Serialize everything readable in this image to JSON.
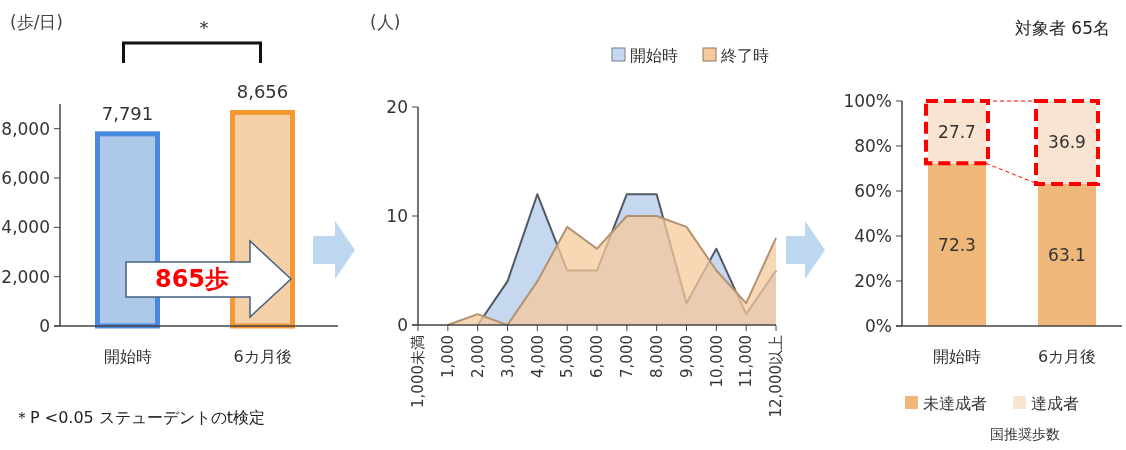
{
  "chart_data": [
    {
      "type": "bar",
      "ylabel": "(歩/日)",
      "categories": [
        "開始時",
        "6カ月後"
      ],
      "values": [
        7791,
        8656
      ],
      "colors": [
        "#aec8ea",
        "#f5cfa6"
      ],
      "ylim": [
        0,
        9000
      ],
      "yticks": [
        {
          "value": 0,
          "label": "0"
        },
        {
          "value": 2000,
          "label": "2,000"
        },
        {
          "value": 4000,
          "label": "4,000"
        },
        {
          "value": 6000,
          "label": "6,000"
        },
        {
          "value": 8000,
          "label": "8,000"
        }
      ],
      "value_labels": [
        "7,791",
        "8,656"
      ],
      "grid": false,
      "annotations": [
        "*",
        "865歩",
        "＊P <0.05 ステューデントのt検定"
      ]
    },
    {
      "type": "area",
      "ylabel": "(人)",
      "categories": [
        "1,000未満",
        "1,000",
        "2,000",
        "3,000",
        "4,000",
        "5,000",
        "6,000",
        "7,000",
        "8,000",
        "9,000",
        "10,000",
        "11,000",
        "12,000以上"
      ],
      "series": [
        {
          "name": "開始時",
          "color": "#c5d8f0",
          "values": [
            null,
            null,
            0,
            4,
            12,
            5,
            5,
            12,
            12,
            2,
            7,
            1,
            5
          ]
        },
        {
          "name": "終了時",
          "color": "#f5c99c",
          "values": [
            null,
            0,
            1,
            0,
            4,
            9,
            7,
            10,
            10,
            9,
            5,
            2,
            8
          ]
        }
      ],
      "ylim": [
        0,
        20
      ],
      "yticks": [
        0,
        10,
        20
      ],
      "legend": "top right",
      "grid": false
    },
    {
      "type": "bar",
      "stacked": true,
      "categories": [
        "開始時",
        "6カ月後"
      ],
      "series": [
        {
          "name": "未達成者",
          "color": "#efb77a",
          "values": [
            72.3,
            63.1
          ]
        },
        {
          "name": "達成者",
          "color": "#f9e4d1",
          "values": [
            27.7,
            36.9
          ]
        }
      ],
      "ylim": [
        0,
        100
      ],
      "yticks": [
        {
          "value": 0,
          "label": "0%"
        },
        {
          "value": 20,
          "label": "20%"
        },
        {
          "value": 40,
          "label": "40%"
        },
        {
          "value": 60,
          "label": "60%"
        },
        {
          "value": 80,
          "label": "80%"
        },
        {
          "value": 100,
          "label": "100%"
        }
      ],
      "data_labels": true,
      "legend": "bottom",
      "grid": false,
      "annotations": [
        "対象者 65名",
        "国推奨歩数"
      ]
    }
  ]
}
